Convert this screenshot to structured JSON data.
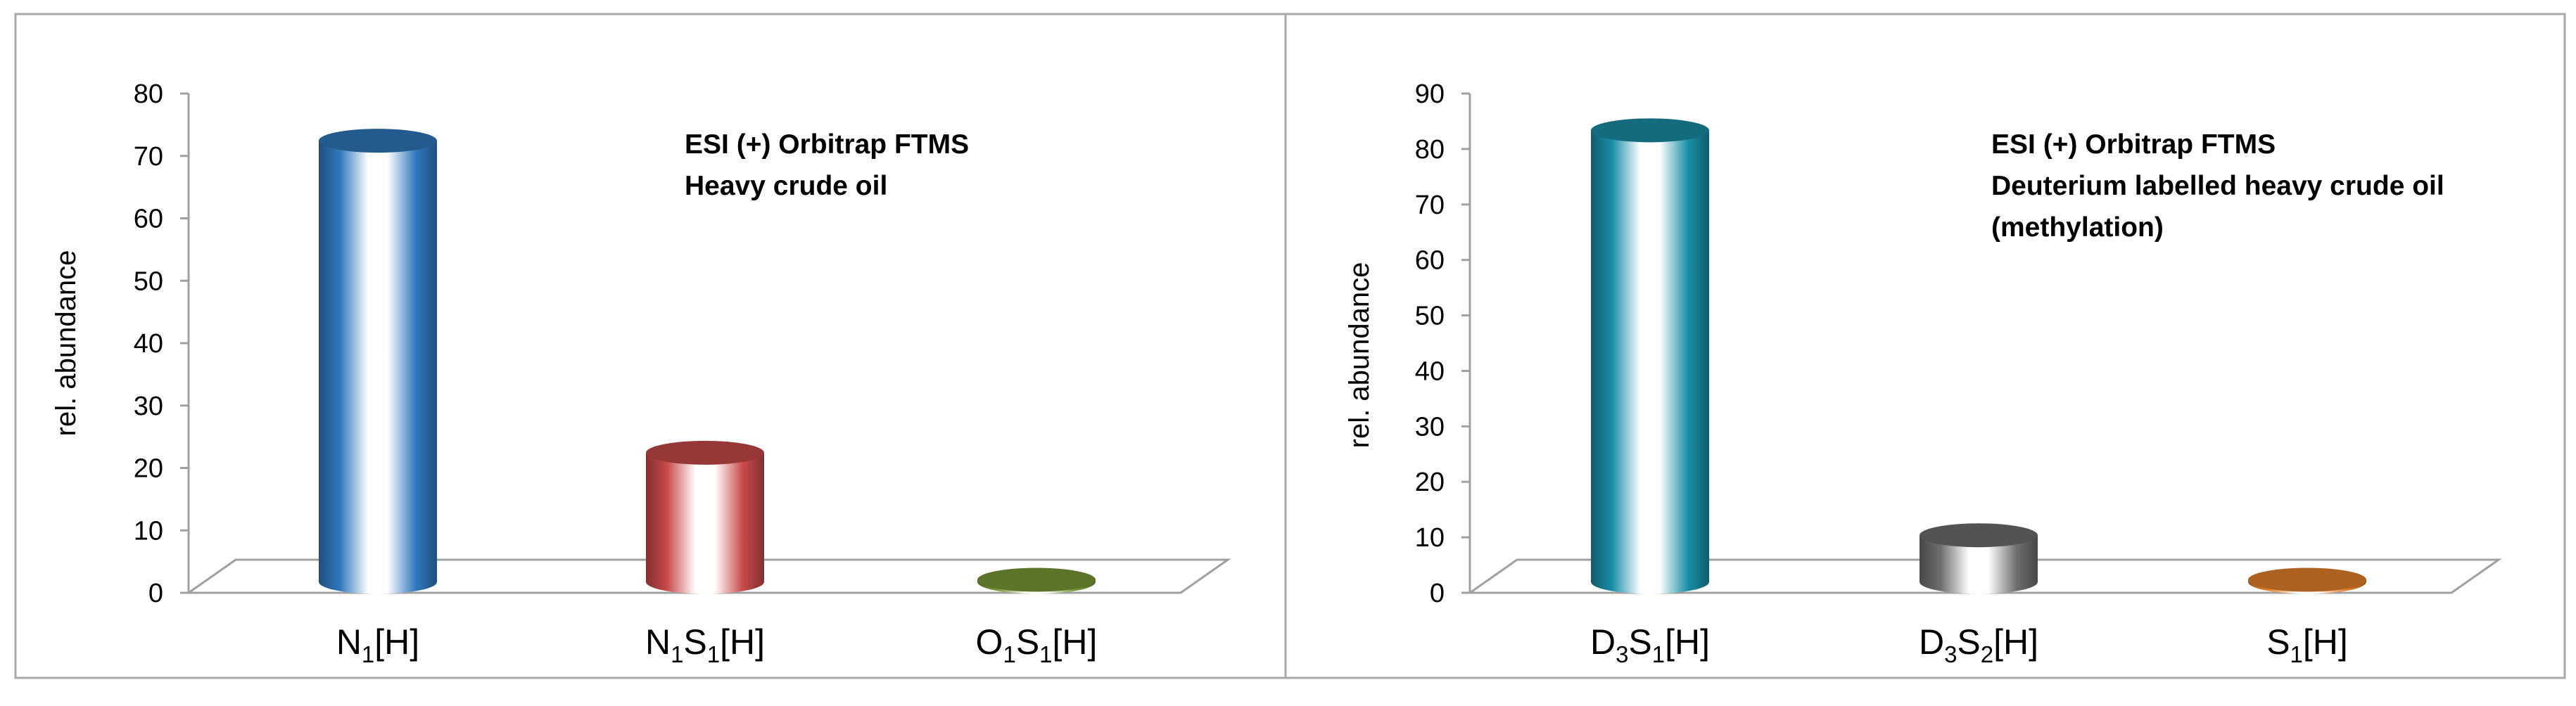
{
  "charts": [
    {
      "ylabel": "rel. abundance",
      "ylim": [
        0,
        80
      ],
      "ticks": [
        0,
        10,
        20,
        30,
        40,
        50,
        60,
        70,
        80
      ],
      "annotation": [
        "ESI (+) Orbitrap FTMS",
        "Heavy crude oil"
      ],
      "bars": [
        {
          "parts": [
            [
              "N",
              "1"
            ],
            [
              "[H]",
              ""
            ]
          ],
          "color": "#2f79be"
        },
        {
          "parts": [
            [
              "N",
              "1"
            ],
            [
              "S",
              "1"
            ],
            [
              "[H]",
              ""
            ]
          ],
          "color": "#c94a4a"
        },
        {
          "parts": [
            [
              "O",
              "1"
            ],
            [
              "S",
              "1"
            ],
            [
              "[H]",
              ""
            ]
          ],
          "color": "#7a9a38"
        }
      ]
    },
    {
      "ylabel": "rel. abundance",
      "ylim": [
        0,
        90
      ],
      "ticks": [
        0,
        10,
        20,
        30,
        40,
        50,
        60,
        70,
        80,
        90
      ],
      "annotation": [
        "ESI (+) Orbitrap FTMS",
        "Deuterium labelled heavy crude oil",
        "(methylation)"
      ],
      "bars": [
        {
          "parts": [
            [
              "D",
              "3"
            ],
            [
              "S",
              "1"
            ],
            [
              "[H]",
              ""
            ]
          ],
          "color": "#1a8fa6"
        },
        {
          "parts": [
            [
              "D",
              "3"
            ],
            [
              "S",
              "2"
            ],
            [
              "[H]",
              ""
            ]
          ],
          "color": "#6e6e6e"
        },
        {
          "parts": [
            [
              "S",
              "1"
            ],
            [
              "[H]",
              ""
            ]
          ],
          "color": "#e8822c"
        }
      ]
    }
  ],
  "chart_data": [
    {
      "type": "bar",
      "categories": [
        "N1[H]",
        "N1S1[H]",
        "O1S1[H]"
      ],
      "values": [
        73,
        23,
        1
      ],
      "title": "",
      "xlabel": "",
      "ylabel": "rel. abundance",
      "ylim": [
        0,
        80
      ]
    },
    {
      "type": "bar",
      "categories": [
        "D3S1[H]",
        "D3S2[H]",
        "S1[H]"
      ],
      "values": [
        84,
        11,
        2
      ],
      "title": "",
      "xlabel": "",
      "ylabel": "rel. abundance",
      "ylim": [
        0,
        90
      ]
    }
  ]
}
